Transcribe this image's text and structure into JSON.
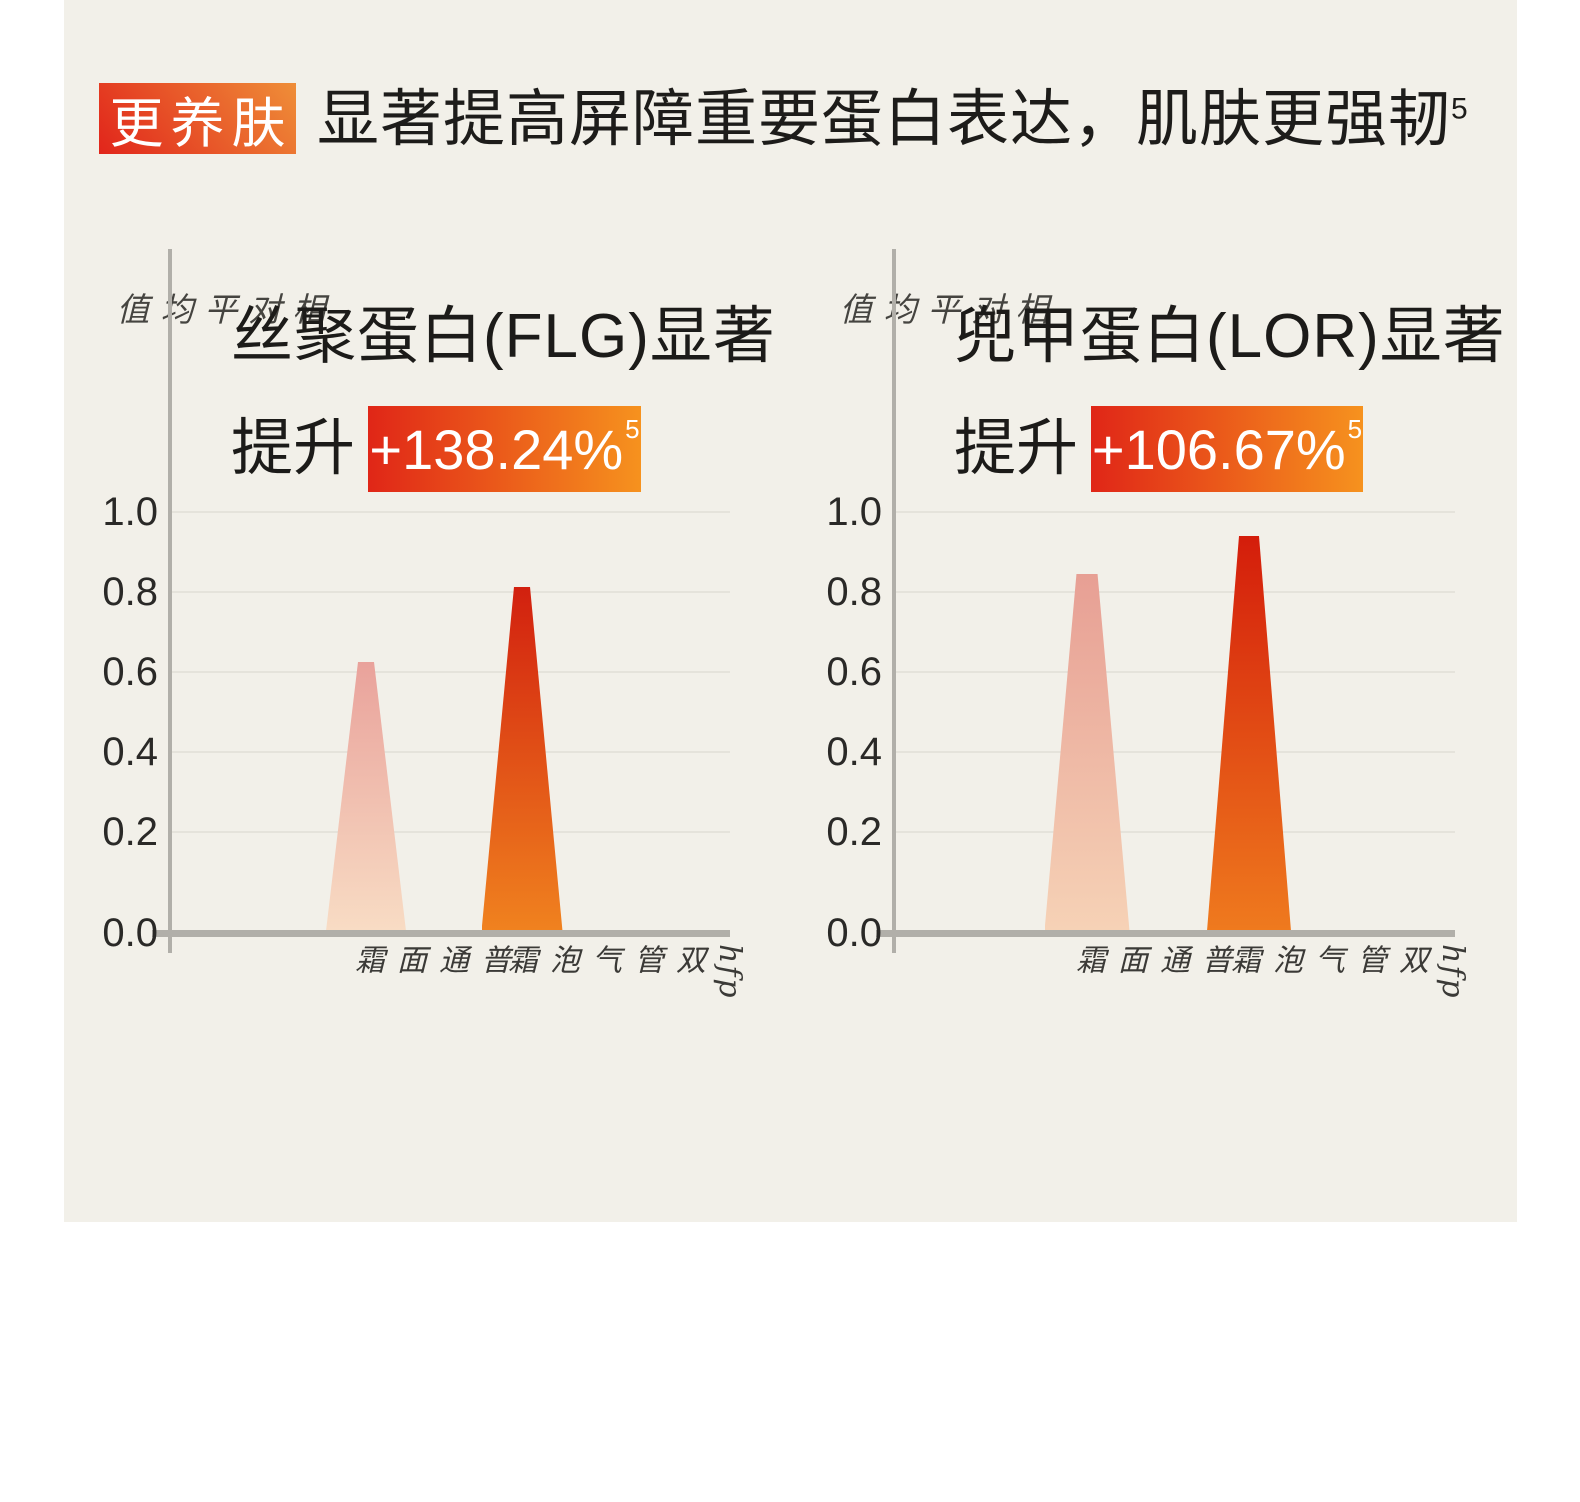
{
  "header": {
    "badge_label": "更养肤",
    "title": "显著提高屏障重要蛋白表达，肌肤更强韧",
    "footnote_marker": "5"
  },
  "colors": {
    "page_background": "#ffffff",
    "panel_background": "#f2f0e9",
    "header_badge_gradient": [
      "#e1251b",
      "#ef8e38"
    ],
    "highlight_badge_gradient": [
      "#e02617",
      "#f6921e"
    ],
    "axis": "#b1afa9",
    "gridline": "#e5e3db",
    "heading_text": "#1d1c1a"
  },
  "chart_data": [
    {
      "type": "bar",
      "title_line1": "丝聚蛋白(FLG)显著",
      "title_line2_prefix": "提升",
      "highlight_value": "+138.24%",
      "footnote_marker": "5",
      "ylabel": "相对平均值",
      "yticks": [
        "1.0",
        "0.8",
        "0.6",
        "0.4",
        "0.2",
        "0.0"
      ],
      "ylim": [
        0,
        1.05
      ],
      "grid": "horizontal",
      "legend": "none",
      "categories": [
        "普通面霜",
        "hfp双管气泡霜"
      ],
      "values": [
        0.64,
        0.82
      ],
      "bar_gradients": [
        [
          "#e9a29b",
          "#f8dcc4"
        ],
        [
          "#d2200f",
          "#f0821f"
        ]
      ]
    },
    {
      "type": "bar",
      "title_line1": "兜甲蛋白(LOR)显著",
      "title_line2_prefix": "提升",
      "highlight_value": "+106.67%",
      "footnote_marker": "5",
      "ylabel": "相对平均值",
      "yticks": [
        "1.0",
        "0.8",
        "0.6",
        "0.4",
        "0.2",
        "0.0"
      ],
      "ylim": [
        0,
        1.05
      ],
      "grid": "horizontal",
      "legend": "none",
      "categories": [
        "普通面霜",
        "hfp双管气泡霜"
      ],
      "values": [
        0.85,
        0.94
      ],
      "bar_gradients": [
        [
          "#e79f94",
          "#f6d2b6"
        ],
        [
          "#d41d0b",
          "#ef7a1e"
        ]
      ]
    }
  ]
}
